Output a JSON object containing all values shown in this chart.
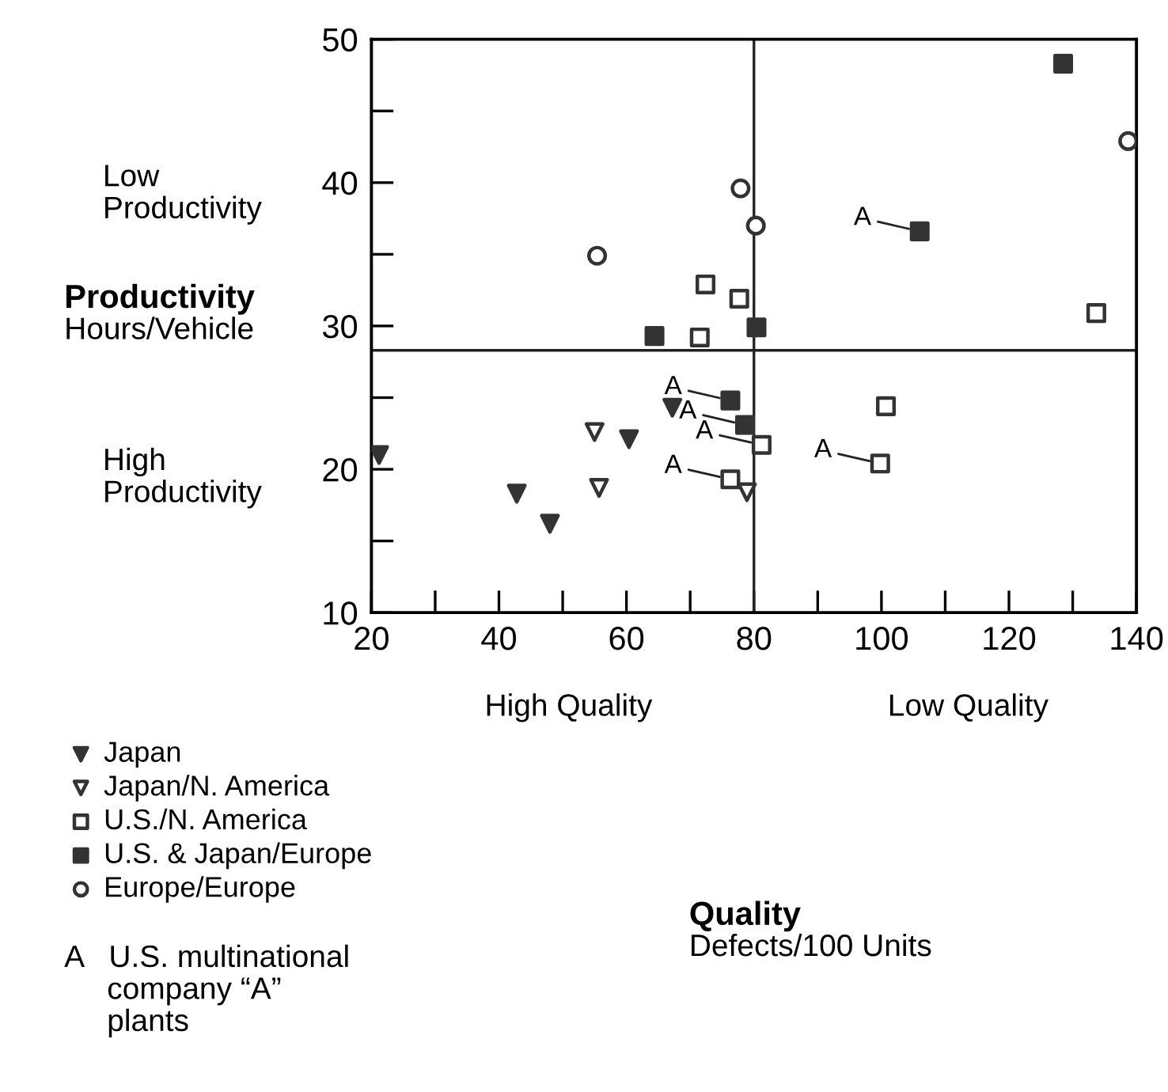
{
  "chart_data": {
    "type": "scatter",
    "ylabel": "Productivity\nHours/Vehicle",
    "xlim": [
      20,
      140
    ],
    "ylim": [
      10,
      50
    ],
    "xticks": [
      20,
      {
        "value": 30,
        "label": null
      },
      40,
      {
        "value": 50,
        "label": null
      },
      60,
      {
        "value": 70,
        "label": null
      },
      80,
      {
        "value": 90,
        "label": null
      },
      100,
      {
        "value": 110,
        "label": null
      },
      120,
      {
        "value": 130,
        "label": null
      },
      140
    ],
    "yticks": [
      10,
      {
        "value": 15,
        "label": null
      },
      20,
      {
        "value": 25,
        "label": null
      },
      30,
      {
        "value": 35,
        "label": null
      },
      40,
      {
        "value": 45,
        "label": null
      },
      50
    ],
    "grid": false,
    "legend": "bottom left",
    "ref_lines": [
      {
        "axis": "y",
        "value": 28.3,
        "color": "#222222"
      },
      {
        "axis": "x",
        "value": 80,
        "color": "#222222"
      }
    ],
    "series": [
      {
        "name": "Japan",
        "color": "#333333",
        "marker": "triangle-down",
        "x": [
          21.2,
          42.8,
          48.0,
          60.4,
          67.2
        ],
        "values": [
          21.0,
          18.3,
          16.2,
          22.1,
          24.3
        ]
      },
      {
        "name": "Japan/N. America",
        "color": "#333333",
        "marker": "triangle-down-open",
        "x": [
          55.0,
          55.7,
          78.9
        ],
        "values": [
          22.6,
          18.7,
          18.4
        ]
      },
      {
        "name": "U.S./N. America",
        "color": "#333333",
        "marker": "square-open",
        "x": [
          71.5,
          72.4,
          77.7,
          76.3,
          81.2,
          99.8,
          100.7,
          133.7
        ],
        "values": [
          29.2,
          32.9,
          31.9,
          19.3,
          21.7,
          20.4,
          24.4,
          30.9
        ]
      },
      {
        "name": "U.S. & Japan/Europe",
        "color": "#333333",
        "marker": "square",
        "x": [
          64.4,
          80.4,
          76.3,
          78.6,
          106.0,
          128.5
        ],
        "values": [
          29.3,
          29.9,
          24.8,
          23.1,
          36.6,
          48.3
        ]
      },
      {
        "name": "Europe/Europe",
        "color": "#333333",
        "marker": "circle-open",
        "x": [
          55.4,
          77.9,
          80.3,
          138.7
        ],
        "values": [
          34.9,
          39.6,
          37.0,
          42.9
        ]
      }
    ],
    "annotations": [
      {
        "text": "A",
        "x": 76.3,
        "y": 24.8
      },
      {
        "text": "A",
        "x": 78.6,
        "y": 23.1
      },
      {
        "text": "A",
        "x": 81.2,
        "y": 21.7
      },
      {
        "text": "A",
        "x": 76.3,
        "y": 19.3
      },
      {
        "text": "A",
        "x": 99.8,
        "y": 20.4
      },
      {
        "text": "A",
        "x": 106.0,
        "y": 36.6
      },
      "Low\nProductivity",
      "High\nProductivity",
      "High Quality",
      "Low Quality",
      "A   U.S. multinational\n     company “A”\n     plants",
      "Quality\nDefects/100 Units"
    ]
  }
}
